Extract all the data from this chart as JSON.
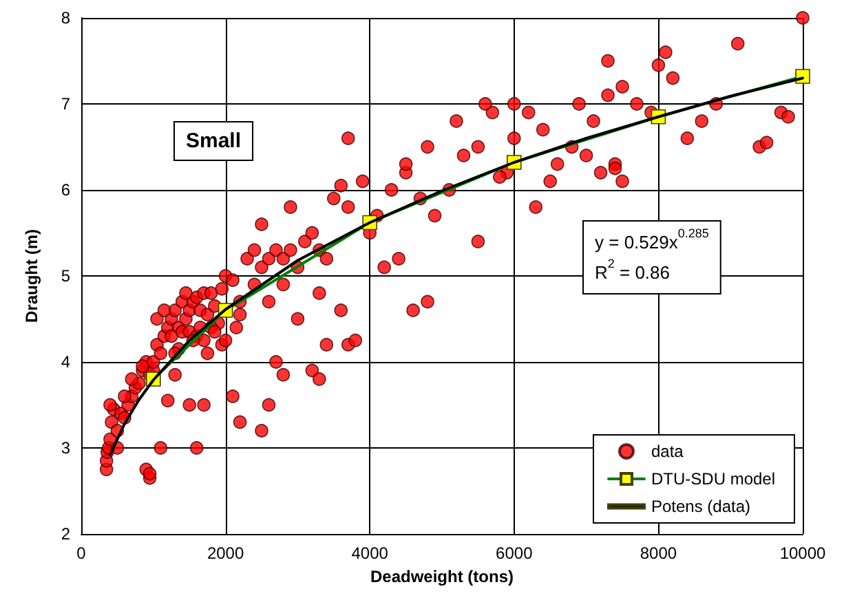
{
  "chart_data": {
    "type": "scatter",
    "xlabel": "Deadweight (tons)",
    "ylabel": "Draught (m)",
    "annotations": [
      "Small",
      "y = 0.529x$^{0.285}$",
      "R$^{2}$ = 0.86"
    ],
    "xlim": [
      0,
      10000
    ],
    "xticks": [
      0,
      2000,
      4000,
      6000,
      8000,
      10000
    ],
    "ylim": [
      2,
      8
    ],
    "yticks": [
      2,
      3,
      4,
      5,
      6,
      7,
      8
    ],
    "grid": true,
    "legend": "bottom right",
    "series": [
      {
        "name": "data",
        "marker": "circle",
        "color": "#ff0000",
        "x": [
          350,
          350,
          360,
          380,
          400,
          420,
          450,
          400,
          500,
          550,
          600,
          650,
          700,
          750,
          800,
          850,
          900,
          950,
          1000,
          500,
          600,
          700,
          850,
          900,
          950,
          950,
          1100,
          1200,
          1300,
          1500,
          1000,
          1050,
          1100,
          1150,
          1200,
          1250,
          1300,
          1350,
          1400,
          1450,
          1500,
          1550,
          1600,
          1650,
          1700,
          1750,
          1800,
          1850,
          1900,
          1950,
          2000,
          1050,
          1150,
          1250,
          1350,
          1400,
          1500,
          1600,
          1700,
          1800,
          1300,
          1450,
          1550,
          1650,
          1750,
          1850,
          1950,
          2000,
          2100,
          2200,
          2300,
          2400,
          2500,
          2600,
          2700,
          2800,
          2900,
          3000,
          3100,
          3200,
          3300,
          3400,
          2100,
          2200,
          2500,
          2800,
          2700,
          2600,
          3200,
          3300,
          3400,
          3700,
          3800,
          3000,
          2150,
          1700,
          1600,
          2200,
          2400,
          2600,
          2800,
          3300,
          3600,
          4200,
          4400,
          4600,
          4800,
          3500,
          3700,
          3900,
          4100,
          4300,
          4500,
          4700,
          4900,
          5100,
          5300,
          5500,
          5700,
          5900,
          6000,
          6200,
          6400,
          6600,
          6800,
          7000,
          7200,
          7400,
          6900,
          7100,
          7300,
          7500,
          7700,
          7900,
          8100,
          8200,
          8400,
          8600,
          8800,
          9100,
          9400,
          9500,
          9700,
          9800,
          10000,
          8000,
          7300,
          6000,
          4800,
          5200,
          5600,
          6300,
          4000,
          3600,
          4500,
          2900,
          2500,
          3700,
          5500,
          5800,
          6500,
          7500,
          7400
        ],
        "values": [
          2.75,
          2.85,
          2.95,
          3.0,
          3.1,
          3.3,
          3.45,
          3.5,
          3.2,
          3.4,
          3.35,
          3.5,
          3.6,
          3.7,
          3.75,
          3.9,
          4.0,
          3.85,
          3.9,
          3.0,
          3.6,
          3.8,
          3.95,
          2.75,
          2.65,
          2.7,
          3.0,
          3.55,
          3.85,
          3.5,
          4.0,
          4.2,
          4.1,
          4.3,
          4.4,
          4.5,
          4.6,
          4.4,
          4.7,
          4.5,
          4.6,
          4.7,
          4.75,
          4.6,
          4.8,
          4.55,
          4.8,
          4.65,
          4.45,
          4.2,
          4.25,
          4.5,
          4.6,
          4.3,
          4.15,
          4.35,
          4.35,
          4.3,
          4.25,
          4.4,
          4.1,
          4.8,
          4.25,
          4.4,
          4.1,
          4.35,
          4.85,
          5.0,
          4.95,
          4.7,
          5.2,
          5.3,
          5.1,
          5.2,
          5.3,
          5.2,
          5.3,
          5.1,
          5.4,
          5.5,
          5.3,
          5.2,
          3.6,
          3.3,
          3.2,
          3.85,
          4.0,
          3.5,
          3.9,
          3.8,
          4.2,
          4.2,
          4.25,
          4.5,
          4.4,
          3.5,
          3.0,
          4.55,
          4.9,
          4.7,
          4.9,
          4.8,
          4.6,
          5.1,
          5.2,
          4.6,
          4.7,
          5.9,
          5.8,
          6.1,
          5.7,
          6.0,
          6.2,
          5.9,
          5.7,
          6.0,
          6.4,
          6.5,
          6.9,
          6.2,
          6.6,
          6.9,
          6.7,
          6.3,
          6.5,
          6.4,
          6.2,
          6.3,
          7.0,
          6.8,
          7.1,
          7.2,
          7.0,
          6.9,
          7.6,
          7.3,
          6.6,
          6.8,
          7.0,
          7.7,
          6.5,
          6.55,
          6.9,
          6.85,
          8.0,
          7.45,
          7.5,
          7.0,
          6.5,
          6.8,
          7.0,
          5.8,
          5.5,
          6.05,
          6.3,
          5.8,
          5.6,
          6.6,
          5.4,
          6.15,
          6.1,
          6.1,
          6.25
        ]
      },
      {
        "name": "DTU-SDU model",
        "type": "line",
        "marker": "square",
        "color": "#008000",
        "x": [
          1000,
          2000,
          4000,
          6000,
          8000,
          10000
        ],
        "values": [
          3.8,
          4.6,
          5.62,
          6.32,
          6.85,
          7.32
        ]
      },
      {
        "name": "Potens (data)",
        "type": "line",
        "marker": "none",
        "color": "#000000",
        "x": [
          400,
          600,
          800,
          1000,
          1500,
          2000,
          3000,
          4000,
          5000,
          6000,
          7000,
          8000,
          9000,
          10000
        ],
        "values": [
          2.92,
          3.28,
          3.56,
          3.79,
          4.25,
          4.61,
          5.18,
          5.62,
          5.99,
          6.32,
          6.6,
          6.85,
          7.09,
          7.3
        ]
      }
    ]
  }
}
